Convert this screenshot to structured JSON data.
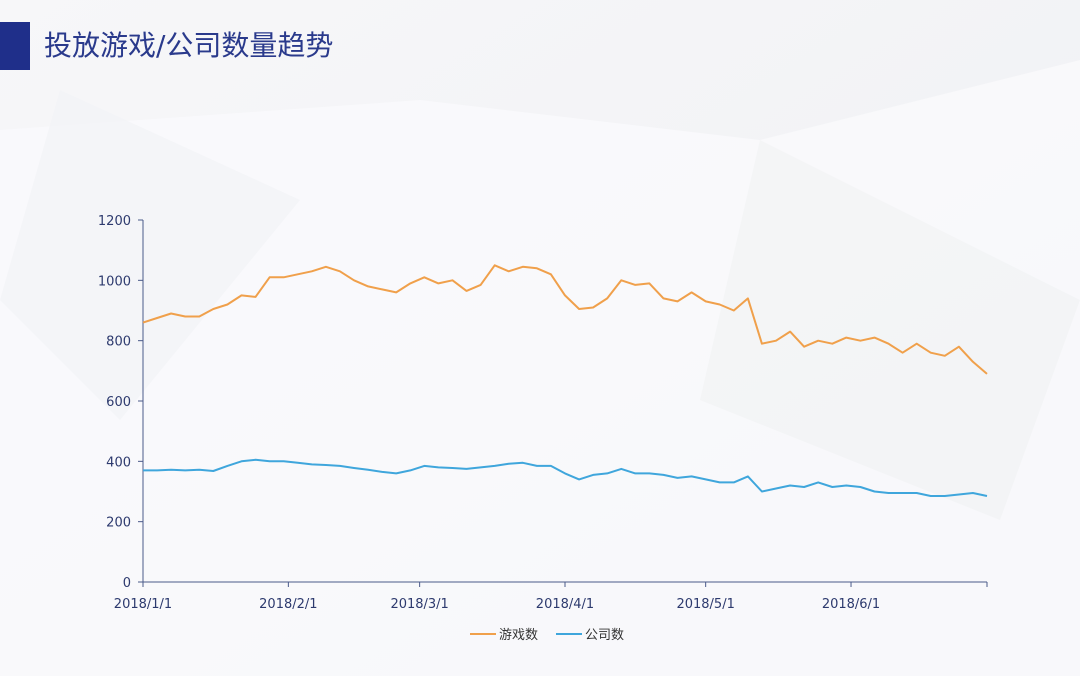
{
  "title": "投放游戏/公司数量趋势",
  "chart_data": {
    "type": "line",
    "x": [
      "2018/1/1",
      "2018/1/4",
      "2018/1/7",
      "2018/1/10",
      "2018/1/13",
      "2018/1/16",
      "2018/1/19",
      "2018/1/22",
      "2018/1/25",
      "2018/1/28",
      "2018/1/31",
      "2018/2/3",
      "2018/2/6",
      "2018/2/9",
      "2018/2/12",
      "2018/2/15",
      "2018/2/18",
      "2018/2/21",
      "2018/2/24",
      "2018/2/27",
      "2018/3/2",
      "2018/3/5",
      "2018/3/8",
      "2018/3/11",
      "2018/3/14",
      "2018/3/17",
      "2018/3/20",
      "2018/3/23",
      "2018/3/26",
      "2018/3/29",
      "2018/4/1",
      "2018/4/4",
      "2018/4/7",
      "2018/4/10",
      "2018/4/13",
      "2018/4/16",
      "2018/4/19",
      "2018/4/22",
      "2018/4/25",
      "2018/4/28",
      "2018/5/1",
      "2018/5/4",
      "2018/5/7",
      "2018/5/10",
      "2018/5/13",
      "2018/5/16",
      "2018/5/19",
      "2018/5/22",
      "2018/5/25",
      "2018/5/28",
      "2018/5/31",
      "2018/6/3",
      "2018/6/6",
      "2018/6/9",
      "2018/6/12",
      "2018/6/15",
      "2018/6/18",
      "2018/6/21",
      "2018/6/24",
      "2018/6/27",
      "2018/6/30"
    ],
    "series": [
      {
        "name": "游戏数",
        "color": "#f0a04b",
        "values": [
          860,
          875,
          890,
          880,
          880,
          905,
          920,
          950,
          945,
          1010,
          1010,
          1020,
          1030,
          1045,
          1030,
          1000,
          980,
          970,
          960,
          990,
          1010,
          990,
          1000,
          965,
          985,
          1050,
          1030,
          1045,
          1040,
          1020,
          950,
          905,
          910,
          940,
          1000,
          985,
          990,
          940,
          930,
          960,
          930,
          920,
          900,
          940,
          790,
          800,
          830,
          780,
          800,
          790,
          810,
          800,
          810,
          790,
          760,
          790,
          760,
          750,
          780,
          730,
          690
        ]
      },
      {
        "name": "公司数",
        "color": "#3fa6dc",
        "values": [
          370,
          370,
          372,
          370,
          372,
          368,
          385,
          400,
          405,
          400,
          400,
          395,
          390,
          388,
          385,
          378,
          372,
          365,
          360,
          370,
          385,
          380,
          378,
          375,
          380,
          385,
          392,
          395,
          385,
          385,
          360,
          340,
          355,
          360,
          375,
          360,
          360,
          355,
          345,
          350,
          340,
          330,
          330,
          350,
          300,
          310,
          320,
          315,
          330,
          315,
          320,
          315,
          300,
          295,
          295,
          295,
          285,
          285,
          290,
          295,
          285
        ]
      }
    ],
    "xlim": [
      "2018/1/1",
      "2018/6/30"
    ],
    "xticks": [
      "2018/1/1",
      "2018/2/1",
      "2018/3/1",
      "2018/4/1",
      "2018/5/1",
      "2018/6/1"
    ],
    "ylim": [
      0,
      1200
    ],
    "yticks": [
      0,
      200,
      400,
      600,
      800,
      1000,
      1200
    ],
    "grid": false,
    "legend": "bottom"
  }
}
